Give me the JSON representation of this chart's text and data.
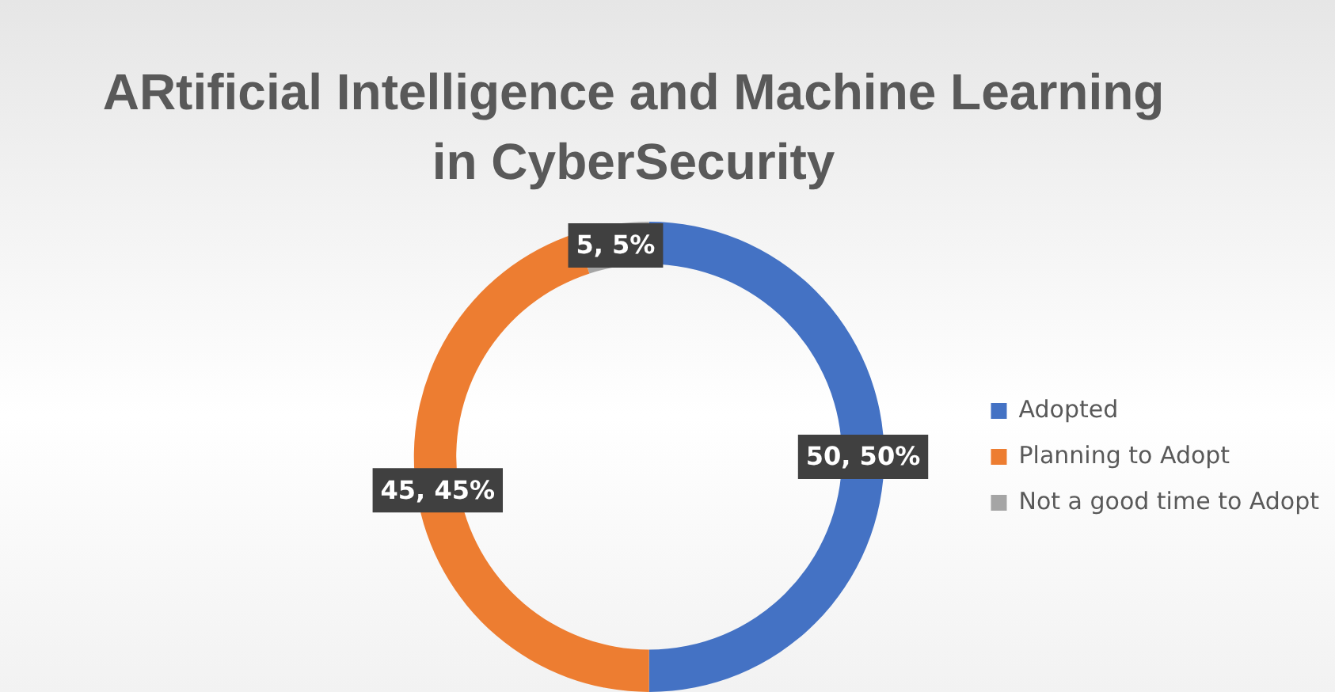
{
  "chart_data": {
    "type": "donut",
    "title": "ARtificial Intelligence and Machine Learning in CyberSecurity",
    "categories": [
      "Adopted",
      "Planning to Adopt",
      "Not a good time to Adopt"
    ],
    "values": [
      50,
      45,
      5
    ],
    "colors": [
      "#4472c4",
      "#ed7d31",
      "#a5a5a5"
    ],
    "value_labels": [
      "50, 50%",
      "45, 45%",
      "5, 5%"
    ],
    "legend": "right"
  }
}
